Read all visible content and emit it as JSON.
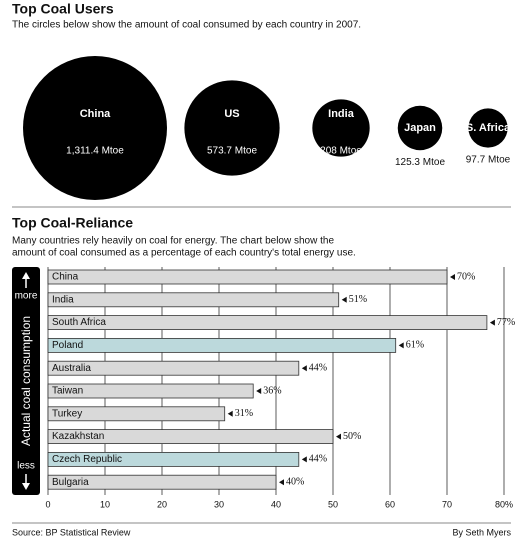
{
  "chart_data": [
    {
      "type": "bubble",
      "title": "Top Coal Users",
      "subtitle": "The circles below show the amount of coal consumed by each country in 2007.",
      "categories": [
        "China",
        "US",
        "India",
        "Japan",
        "S. Africa"
      ],
      "values": [
        1311.4,
        573.7,
        208,
        125.3,
        97.7
      ],
      "value_labels": [
        "1,311.4 Mtoe",
        "573.7 Mtoe",
        "208 Mtoe",
        "125.3 Mtoe",
        "97.7 Mtoe"
      ],
      "color": "#000000"
    },
    {
      "type": "bar",
      "title": "Top Coal-Reliance",
      "description": [
        "Many countries rely heavily on coal for energy. The chart below show the",
        "amount of coal consumed as a percentage of each country's total energy use."
      ],
      "categories": [
        "China",
        "India",
        "South Africa",
        "Poland",
        "Australia",
        "Taiwan",
        "Turkey",
        "Kazakhstan",
        "Czech Republic",
        "Bulgaria"
      ],
      "values": [
        70,
        51,
        77,
        61,
        44,
        36,
        31,
        50,
        44,
        40
      ],
      "value_labels": [
        "70%",
        "51%",
        "77%",
        "61%",
        "44%",
        "36%",
        "31%",
        "50%",
        "44%",
        "40%"
      ],
      "colors": [
        "#d9d9d9",
        "#d9d9d9",
        "#d9d9d9",
        "#bcd9dc",
        "#d9d9d9",
        "#d9d9d9",
        "#d9d9d9",
        "#d9d9d9",
        "#bcd9dc",
        "#d9d9d9"
      ],
      "xlim": [
        0,
        80
      ],
      "xticks": [
        0,
        10,
        20,
        30,
        40,
        50,
        60,
        70,
        {
          "value": 80,
          "label": "80%"
        }
      ],
      "grid": true,
      "ylabel": "Actual coal consumption",
      "top_label": "more",
      "bottom_label": "less",
      "source": "Source: BP Statistical Review",
      "credit": "By Seth Myers"
    }
  ]
}
